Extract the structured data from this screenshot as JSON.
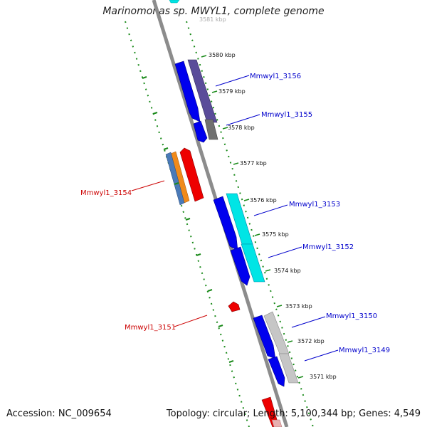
{
  "title": "Marinomonas sp. MWYL1, complete genome",
  "footer": {
    "accession": "Accession: NC_009654",
    "summary": "Topology: circular; Length: 5,100,344 bp; Genes: 4,549"
  },
  "ticks": [
    {
      "label": "3581 kbp"
    },
    {
      "label": "3580 kbp"
    },
    {
      "label": "3579 kbp"
    },
    {
      "label": "3578 kbp"
    },
    {
      "label": "3577 kbp"
    },
    {
      "label": "3576 kbp"
    },
    {
      "label": "3575 kbp"
    },
    {
      "label": "3574 kbp"
    },
    {
      "label": "3573 kbp"
    },
    {
      "label": "3572 kbp"
    },
    {
      "label": "3571 kbp"
    }
  ],
  "genes": [
    {
      "label": "Mmwyl1_3156",
      "color": "#0000cc"
    },
    {
      "label": "Mmwyl1_3155",
      "color": "#0000cc"
    },
    {
      "label": "Mmwyl1_3154",
      "color": "#cc0000"
    },
    {
      "label": "Mmwyl1_3153",
      "color": "#0000cc"
    },
    {
      "label": "Mmwyl1_3152",
      "color": "#0000cc"
    },
    {
      "label": "Mmwyl1_3151",
      "color": "#cc0000"
    },
    {
      "label": "Mmwyl1_3150",
      "color": "#0000cc"
    },
    {
      "label": "Mmwyl1_3149",
      "color": "#0000cc"
    }
  ],
  "colors": {
    "backbone": "#8c8c8c",
    "ring_dots": "#1a8a1a",
    "cds_blue": "#0000ee",
    "cds_red": "#ee0000",
    "cog_purple": "#5a4c9a",
    "cog_gray": "#707070",
    "cog_cyan": "#00e5e5",
    "cog_lightgray": "#c0c0c0",
    "cog_steelblue": "#4a7ab8",
    "cog_orange": "#f08a1a"
  }
}
